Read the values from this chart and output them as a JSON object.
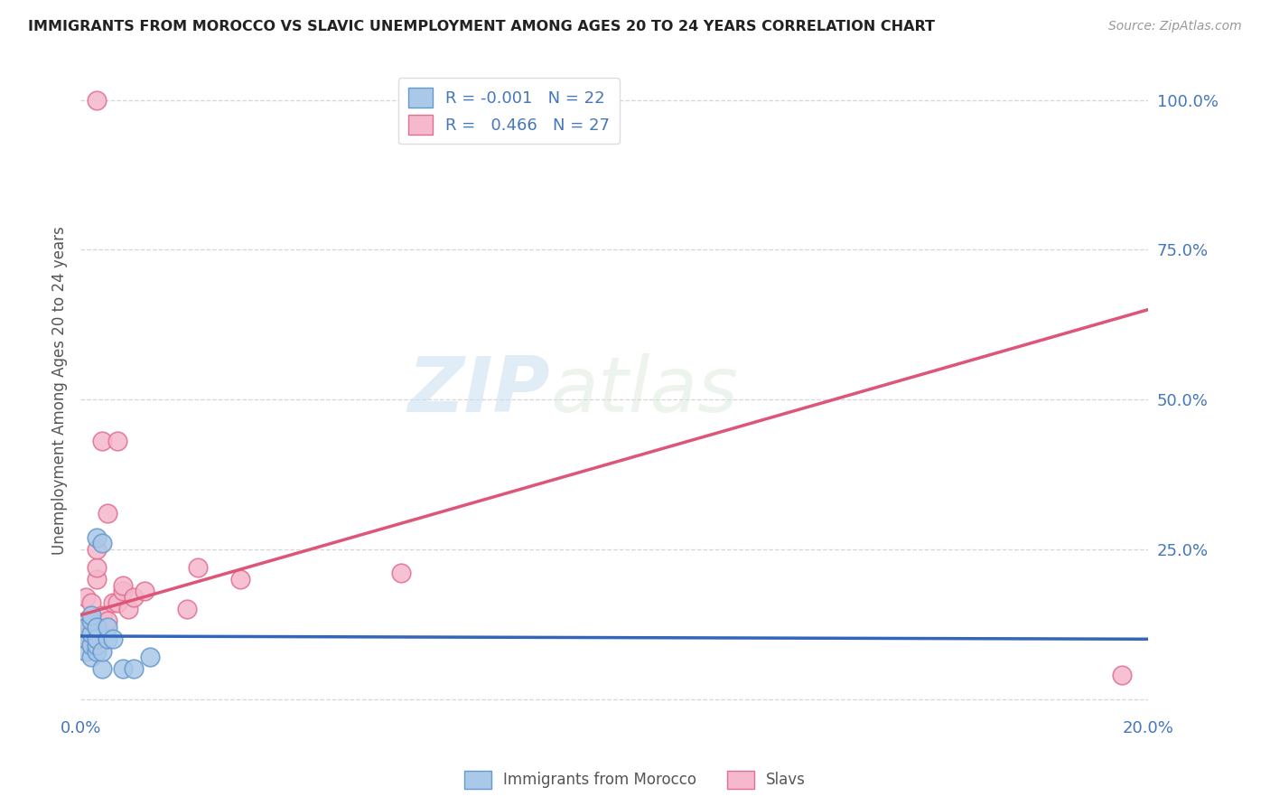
{
  "title": "IMMIGRANTS FROM MOROCCO VS SLAVIC UNEMPLOYMENT AMONG AGES 20 TO 24 YEARS CORRELATION CHART",
  "source": "Source: ZipAtlas.com",
  "ylabel": "Unemployment Among Ages 20 to 24 years",
  "xlim": [
    0.0,
    0.2
  ],
  "ylim": [
    -0.02,
    1.05
  ],
  "xtick_positions": [
    0.0,
    0.04,
    0.08,
    0.12,
    0.16,
    0.2
  ],
  "xticklabels": [
    "0.0%",
    "",
    "",
    "",
    "",
    "20.0%"
  ],
  "right_ytick_positions": [
    0.0,
    0.25,
    0.5,
    0.75,
    1.0
  ],
  "right_yticklabels": [
    "",
    "25.0%",
    "50.0%",
    "75.0%",
    "100.0%"
  ],
  "morocco_color": "#aac8e8",
  "slavs_color": "#f5b8cc",
  "morocco_edge": "#6699cc",
  "slavs_edge": "#e07090",
  "trend_morocco_color": "#3366bb",
  "trend_slavs_color": "#dd5577",
  "legend_r_morocco": "-0.001",
  "legend_n_morocco": "22",
  "legend_r_slavs": "0.466",
  "legend_n_slavs": "27",
  "watermark_zip": "ZIP",
  "watermark_atlas": "atlas",
  "trend_slavs_x0": 0.0,
  "trend_slavs_y0": 0.14,
  "trend_slavs_x1": 0.2,
  "trend_slavs_y1": 0.65,
  "trend_morocco_x0": 0.0,
  "trend_morocco_y0": 0.105,
  "trend_morocco_x1": 0.2,
  "trend_morocco_y1": 0.1,
  "morocco_x": [
    0.001,
    0.001,
    0.001,
    0.002,
    0.002,
    0.002,
    0.002,
    0.002,
    0.003,
    0.003,
    0.003,
    0.003,
    0.003,
    0.004,
    0.004,
    0.004,
    0.005,
    0.005,
    0.006,
    0.008,
    0.01,
    0.013
  ],
  "morocco_y": [
    0.08,
    0.1,
    0.12,
    0.07,
    0.09,
    0.11,
    0.13,
    0.14,
    0.08,
    0.09,
    0.1,
    0.12,
    0.27,
    0.05,
    0.08,
    0.26,
    0.1,
    0.12,
    0.1,
    0.05,
    0.05,
    0.07
  ],
  "slavs_x": [
    0.001,
    0.001,
    0.001,
    0.002,
    0.002,
    0.002,
    0.003,
    0.003,
    0.003,
    0.003,
    0.004,
    0.004,
    0.005,
    0.005,
    0.006,
    0.007,
    0.007,
    0.008,
    0.008,
    0.009,
    0.01,
    0.012,
    0.02,
    0.022,
    0.03,
    0.06,
    0.195
  ],
  "slavs_y": [
    0.1,
    0.13,
    0.17,
    0.09,
    0.12,
    0.16,
    0.2,
    0.22,
    0.25,
    1.0,
    0.14,
    0.43,
    0.13,
    0.31,
    0.16,
    0.43,
    0.16,
    0.18,
    0.19,
    0.15,
    0.17,
    0.18,
    0.15,
    0.22,
    0.2,
    0.21,
    0.04
  ]
}
